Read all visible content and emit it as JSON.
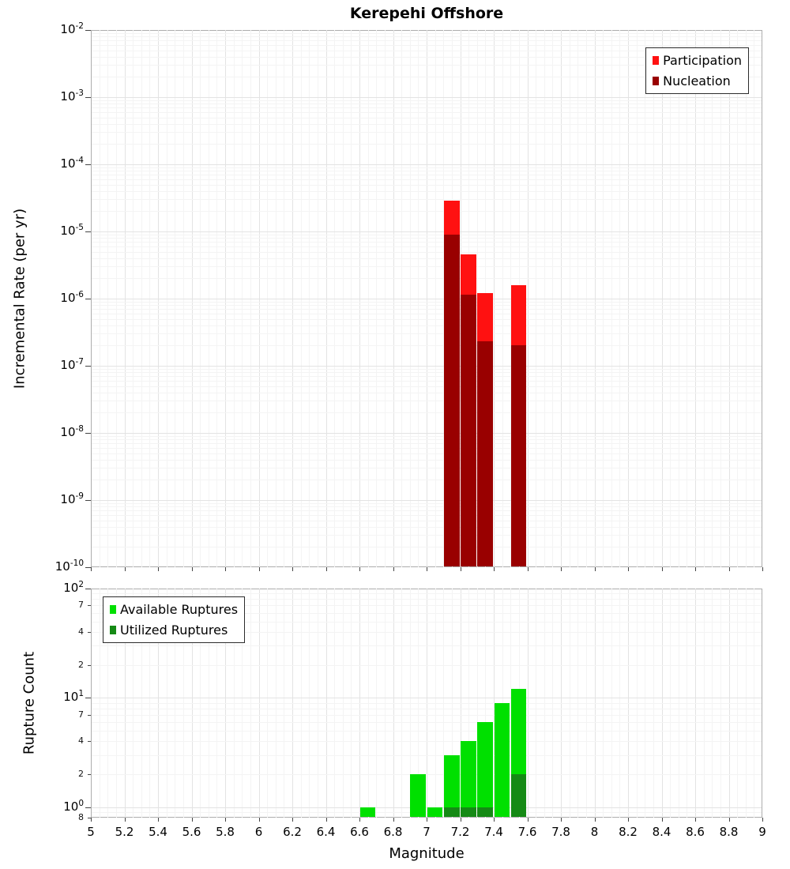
{
  "chart_data": [
    {
      "type": "bar",
      "title": "Kerepehi Offshore",
      "ylabel": "Incremental Rate (per yr)",
      "xlabel": "",
      "yscale": "log",
      "ylim": [
        1e-10,
        0.01
      ],
      "xlim": [
        5,
        9
      ],
      "grid": true,
      "bin_width": 0.1,
      "show_x_tick_labels": false,
      "x_tick_labels": [
        "5",
        "5.2",
        "5.4",
        "5.6",
        "5.8",
        "6",
        "6.2",
        "6.4",
        "6.6",
        "6.8",
        "7",
        "7.2",
        "7.4",
        "7.6",
        "7.8",
        "8",
        "8.2",
        "8.4",
        "8.6",
        "8.8",
        "9"
      ],
      "y_ticks": [
        {
          "value": 0.01,
          "exp": -2
        },
        {
          "value": 0.001,
          "exp": -3
        },
        {
          "value": 0.0001,
          "exp": -4
        },
        {
          "value": 1e-05,
          "exp": -5
        },
        {
          "value": 1e-06,
          "exp": -6
        },
        {
          "value": 1e-07,
          "exp": -7
        },
        {
          "value": 1e-08,
          "exp": -8
        },
        {
          "value": 1e-09,
          "exp": -9
        },
        {
          "value": 1e-10,
          "exp": -10
        }
      ],
      "legend": {
        "position": "top-right",
        "entries": [
          {
            "label": "Participation",
            "color": "#ff1111"
          },
          {
            "label": "Nucleation",
            "color": "#990000"
          }
        ]
      },
      "series": [
        {
          "name": "Participation",
          "color": "#ff1111",
          "bars": [
            {
              "bin": [
                7.1,
                7.2
              ],
              "value": 2.9e-05
            },
            {
              "bin": [
                7.2,
                7.3
              ],
              "value": 4.6e-06
            },
            {
              "bin": [
                7.3,
                7.4
              ],
              "value": 1.2e-06
            },
            {
              "bin": [
                7.5,
                7.6
              ],
              "value": 1.6e-06
            }
          ]
        },
        {
          "name": "Nucleation",
          "color": "#990000",
          "bars": [
            {
              "bin": [
                7.1,
                7.2
              ],
              "value": 9e-06
            },
            {
              "bin": [
                7.2,
                7.3
              ],
              "value": 1.15e-06
            },
            {
              "bin": [
                7.3,
                7.4
              ],
              "value": 2.3e-07
            },
            {
              "bin": [
                7.5,
                7.6
              ],
              "value": 2e-07
            }
          ]
        }
      ]
    },
    {
      "type": "bar",
      "title": "",
      "ylabel": "Rupture Count",
      "xlabel": "Magnitude",
      "yscale": "log",
      "ylim": [
        0.8,
        100
      ],
      "xlim": [
        5,
        9
      ],
      "grid": true,
      "bin_width": 0.1,
      "show_x_tick_labels": true,
      "x_tick_labels": [
        "5",
        "5.2",
        "5.4",
        "5.6",
        "5.8",
        "6",
        "6.2",
        "6.4",
        "6.6",
        "6.8",
        "7",
        "7.2",
        "7.4",
        "7.6",
        "7.8",
        "8",
        "8.2",
        "8.4",
        "8.6",
        "8.8",
        "9"
      ],
      "y_ticks": [
        {
          "value": 100,
          "exp": 2
        },
        {
          "value": 70,
          "text": "7"
        },
        {
          "value": 40,
          "text": "4"
        },
        {
          "value": 20,
          "text": "2"
        },
        {
          "value": 10,
          "exp": 1
        },
        {
          "value": 7,
          "text": "7"
        },
        {
          "value": 4,
          "text": "4"
        },
        {
          "value": 2,
          "text": "2"
        },
        {
          "value": 1,
          "exp": 0
        },
        {
          "value": 0.8,
          "text": "8"
        }
      ],
      "legend": {
        "position": "top-left",
        "entries": [
          {
            "label": "Available Ruptures",
            "color": "#00e000"
          },
          {
            "label": "Utilized Ruptures",
            "color": "#158a15"
          }
        ]
      },
      "series": [
        {
          "name": "Available Ruptures",
          "color": "#00e000",
          "bars": [
            {
              "bin": [
                6.6,
                6.7
              ],
              "value": 1
            },
            {
              "bin": [
                6.9,
                7.0
              ],
              "value": 2
            },
            {
              "bin": [
                7.0,
                7.1
              ],
              "value": 1
            },
            {
              "bin": [
                7.1,
                7.2
              ],
              "value": 3
            },
            {
              "bin": [
                7.2,
                7.3
              ],
              "value": 4
            },
            {
              "bin": [
                7.3,
                7.4
              ],
              "value": 6
            },
            {
              "bin": [
                7.4,
                7.5
              ],
              "value": 9
            },
            {
              "bin": [
                7.5,
                7.6
              ],
              "value": 12
            }
          ]
        },
        {
          "name": "Utilized Ruptures",
          "color": "#158a15",
          "bars": [
            {
              "bin": [
                7.1,
                7.2
              ],
              "value": 1
            },
            {
              "bin": [
                7.2,
                7.3
              ],
              "value": 1
            },
            {
              "bin": [
                7.3,
                7.4
              ],
              "value": 1
            },
            {
              "bin": [
                7.5,
                7.6
              ],
              "value": 2
            }
          ]
        }
      ]
    }
  ]
}
